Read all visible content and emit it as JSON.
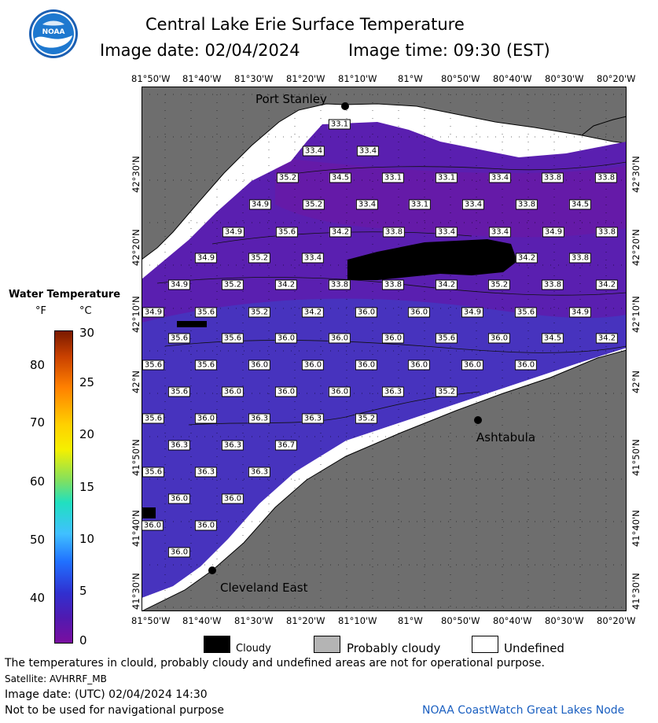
{
  "header": {
    "title": "Central Lake Erie Surface Temperature",
    "image_date": "Image date: 02/04/2024",
    "image_time": "Image time: 09:30 (EST)",
    "logo_text": "NOAA"
  },
  "axes": {
    "longitudes": [
      "81°50'W",
      "81°40'W",
      "81°30'W",
      "81°20'W",
      "81°10'W",
      "81°W",
      "80°50'W",
      "80°40'W",
      "80°30'W",
      "80°20'W"
    ],
    "latitudes": [
      "42°30'N",
      "42°20'N",
      "42°10'N",
      "42°N",
      "41°50'N",
      "41°40'N",
      "41°30'N"
    ]
  },
  "places": [
    {
      "name": "Port Stanley"
    },
    {
      "name": "Ashtabula"
    },
    {
      "name": "Cleveland East"
    }
  ],
  "colorbar": {
    "title": "Water Temperature",
    "unit_f": "°F",
    "unit_c": "°C",
    "fahrenheit_ticks": [
      "80",
      "70",
      "60",
      "50",
      "40"
    ],
    "celsius_ticks": [
      "30",
      "25",
      "20",
      "15",
      "10",
      "5",
      "0"
    ]
  },
  "temperature_labels": [
    "33.1",
    "33.4",
    "33.4",
    "35.2",
    "34.5",
    "33.1",
    "33.1",
    "33.4",
    "33.8",
    "33.8",
    "34.9",
    "35.2",
    "33.4",
    "33.1",
    "33.4",
    "33.8",
    "34.5",
    "34.9",
    "35.6",
    "34.2",
    "33.8",
    "33.4",
    "33.4",
    "34.9",
    "33.8",
    "34.9",
    "35.2",
    "33.4",
    "34.2",
    "33.8",
    "34.9",
    "35.2",
    "34.2",
    "33.8",
    "33.8",
    "34.2",
    "35.2",
    "33.8",
    "34.2",
    "34.9",
    "35.6",
    "35.2",
    "34.2",
    "36.0",
    "36.0",
    "34.9",
    "35.6",
    "34.9",
    "35.6",
    "35.6",
    "36.0",
    "36.0",
    "36.0",
    "35.6",
    "36.0",
    "34.5",
    "34.2",
    "35.6",
    "35.6",
    "36.0",
    "36.0",
    "36.0",
    "36.0",
    "36.0",
    "36.0",
    "35.6",
    "36.0",
    "36.0",
    "36.0",
    "36.3",
    "35.2",
    "35.6",
    "36.0",
    "36.3",
    "36.3",
    "35.2",
    "36.3",
    "36.3",
    "36.7",
    "35.6",
    "36.3",
    "36.3",
    "36.0",
    "36.0",
    "36.0",
    "36.0",
    "36.0"
  ],
  "legend": {
    "cloudy": "Cloudy",
    "probably_cloudy": "Probably cloudy",
    "undefined": "Undefined"
  },
  "footer": {
    "disclaimer": "The temperatures in clould, probably cloudy and undefined areas are not for operational purpose.",
    "satellite": "Satellite: AVHRRF_MB",
    "utc_date": "Image date: (UTC) 02/04/2024  14:30",
    "nav_warning": "Not to be used for navigational purpose",
    "credit": "NOAA CoastWatch Great Lakes Node"
  },
  "colors": {
    "land": "#6e6e6e",
    "lake": "#5a1fb0",
    "lake_warm": "#4535c0",
    "cloud": "#000000",
    "undefined": "#ffffff",
    "probably_cloudy": "#b4b4b4",
    "credit": "#1a5fc0"
  }
}
